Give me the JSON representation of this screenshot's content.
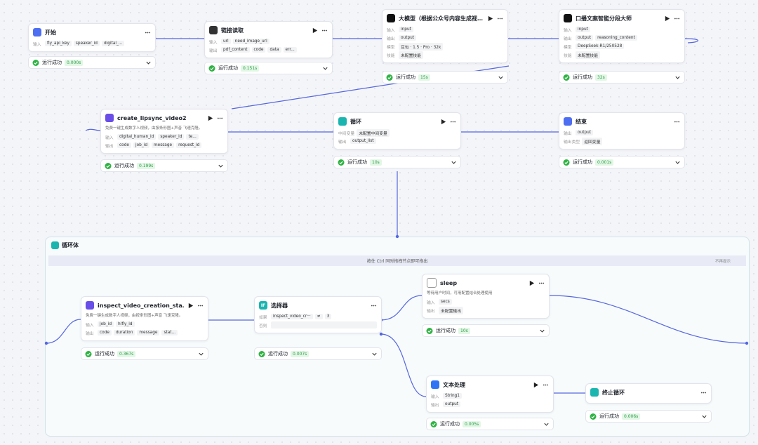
{
  "nodes": [
    {
      "title": "开始",
      "rows": [
        {
          "label": "输入",
          "items": [
            "fly_api_key",
            "speaker_id",
            "digital_..."
          ]
        }
      ],
      "status": "运行成功",
      "time": "0.000s"
    },
    {
      "title": "链接读取",
      "rows": [
        {
          "label": "输入",
          "items": [
            "url",
            "need_image_url"
          ]
        },
        {
          "label": "输出",
          "items": [
            "pdf_content",
            "code",
            "data",
            "err..."
          ]
        }
      ],
      "status": "运行成功",
      "time": "0.151s"
    },
    {
      "title": "大模型（根据公众号内容生成视…",
      "rows": [
        {
          "label": "输入",
          "items": [
            "input"
          ]
        },
        {
          "label": "输出",
          "items": [
            "output"
          ]
        },
        {
          "label": "模型",
          "items": [
            "豆包 · 1.5 · Pro · 32k"
          ]
        },
        {
          "label": "技能",
          "items": [
            "未配置技能"
          ]
        }
      ],
      "status": "运行成功",
      "time": "15s"
    },
    {
      "title": "口播文案智能分段大师",
      "rows": [
        {
          "label": "输入",
          "items": [
            "input"
          ]
        },
        {
          "label": "输出",
          "items": [
            "output",
            "reasoning_content"
          ]
        },
        {
          "label": "模型",
          "items": [
            "DeepSeek-R1/250528"
          ]
        },
        {
          "label": "技能",
          "items": [
            "未配置技能"
          ]
        }
      ],
      "status": "运行成功",
      "time": "32s"
    },
    {
      "title": "create_lipsync_video2",
      "description": "免费一键生成数字人视频，由按条形图+声音 飞速克隆。",
      "rows": [
        {
          "label": "输入",
          "items": [
            "digital_human_id",
            "speaker_id",
            "te..."
          ]
        },
        {
          "label": "输出",
          "items": [
            "code",
            "job_id",
            "message",
            "request_id"
          ]
        }
      ],
      "status": "运行成功",
      "time": "0.199s"
    },
    {
      "title": "循环",
      "rows": [
        {
          "label": "中间变量",
          "items": [
            "未配置中间变量"
          ]
        },
        {
          "label": "输出",
          "items": [
            "output_list"
          ]
        }
      ],
      "status": "运行成功",
      "time": "10s"
    },
    {
      "title": "结束",
      "rows": [
        {
          "label": "输出",
          "items": [
            "output"
          ]
        },
        {
          "label": "输出类型",
          "items": [
            "返回变量"
          ]
        }
      ],
      "status": "运行成功",
      "time": "0.001s"
    },
    {
      "title": "inspect_video_creation_sta…",
      "description": "免费一键生成数字人视频，由按条形图+声音 飞速克隆。",
      "rows": [
        {
          "label": "输入",
          "items": [
            "job_id",
            "hifly_id"
          ]
        },
        {
          "label": "输出",
          "items": [
            "code",
            "duration",
            "message",
            "stat..."
          ]
        }
      ],
      "status": "运行成功",
      "time": "0.367s"
    },
    {
      "title": "选择器",
      "icon": "IF",
      "rows": [
        {
          "label": "如果",
          "items": [
            "inspect_video_cr···",
            "≠",
            "3"
          ]
        },
        {
          "label": "否则",
          "items": []
        }
      ],
      "status": "运行成功",
      "time": "0.007s"
    },
    {
      "title": "sleep",
      "description": "等待用户时间，可用配置结合处理使用",
      "rows": [
        {
          "label": "输入",
          "items": [
            "secs"
          ]
        },
        {
          "label": "输出",
          "items": [
            "未配置输出"
          ]
        }
      ],
      "status": "运行成功",
      "time": "10s"
    },
    {
      "title": "文本处理",
      "rows": [
        {
          "label": "输入",
          "items": [
            "String1"
          ]
        },
        {
          "label": "输出",
          "items": [
            "output"
          ]
        }
      ],
      "status": "运行成功",
      "time": "0.005s"
    },
    {
      "title": "终止循环",
      "rows": [],
      "status": "运行成功",
      "time": "0.006s"
    }
  ],
  "loop_body": {
    "title": "循环体",
    "hint": "按住 Ctrl 同时拖拽节点即可拖出",
    "dismiss": "不再提示"
  }
}
